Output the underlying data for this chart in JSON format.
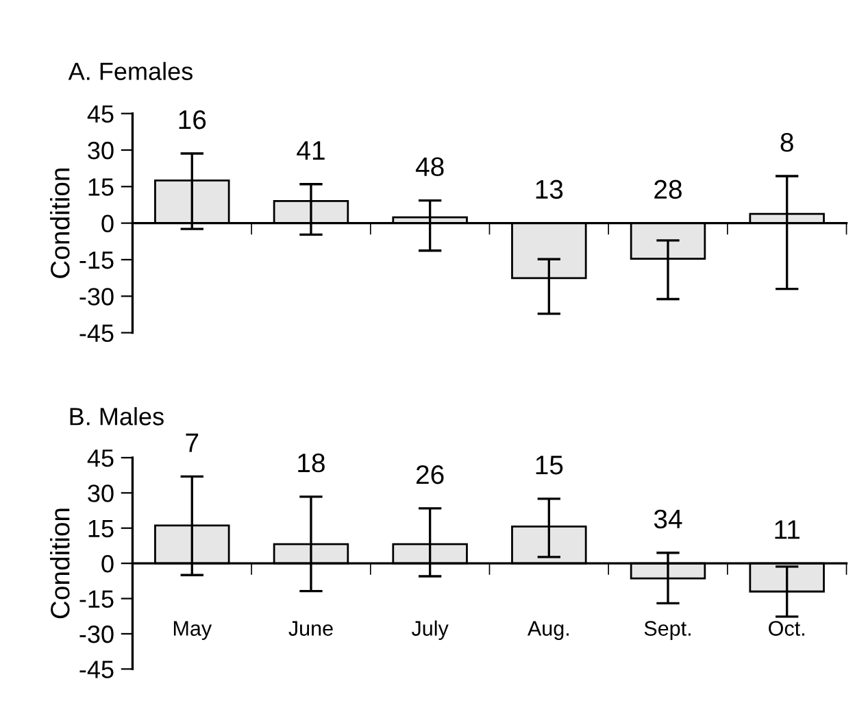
{
  "chart_data": [
    {
      "type": "bar",
      "title": "A. Females",
      "ylabel": "Condition",
      "categories": [
        null,
        null,
        null,
        null,
        null,
        null
      ],
      "color": "#e6e6e6",
      "values": [
        17.5,
        9.1,
        2.4,
        -22.6,
        -14.6,
        3.8
      ],
      "errors": [
        [
          -2.4,
          28.6
        ],
        [
          -4.7,
          16.0
        ],
        [
          -11.3,
          9.3
        ],
        [
          -37.2,
          -14.8
        ],
        [
          -31.2,
          -7.1
        ],
        [
          -27.0,
          19.3
        ]
      ],
      "ylim": [
        -45,
        45
      ],
      "yticks": [
        -45,
        -30,
        -15,
        0,
        15,
        30,
        45
      ],
      "annotations": [
        "16",
        "41",
        "48",
        "13",
        "28",
        "8"
      ]
    },
    {
      "type": "bar",
      "title": "B. Males",
      "ylabel": "Condition",
      "categories": [
        "May",
        "June",
        "July",
        "Aug.",
        "Sept.",
        "Oct."
      ],
      "color": "#e6e6e6",
      "values": [
        16.1,
        8.2,
        8.2,
        15.7,
        -6.4,
        -12.0
      ],
      "errors": [
        [
          -5.0,
          37.0
        ],
        [
          -11.8,
          28.4
        ],
        [
          -5.5,
          23.4
        ],
        [
          2.7,
          27.5
        ],
        [
          -17.0,
          4.5
        ],
        [
          -22.7,
          -1.4
        ]
      ],
      "ylim": [
        -45,
        45
      ],
      "yticks": [
        -45,
        -30,
        -15,
        0,
        15,
        30,
        45
      ],
      "annotations": [
        "7",
        "18",
        "26",
        "15",
        "34",
        "11"
      ]
    }
  ]
}
